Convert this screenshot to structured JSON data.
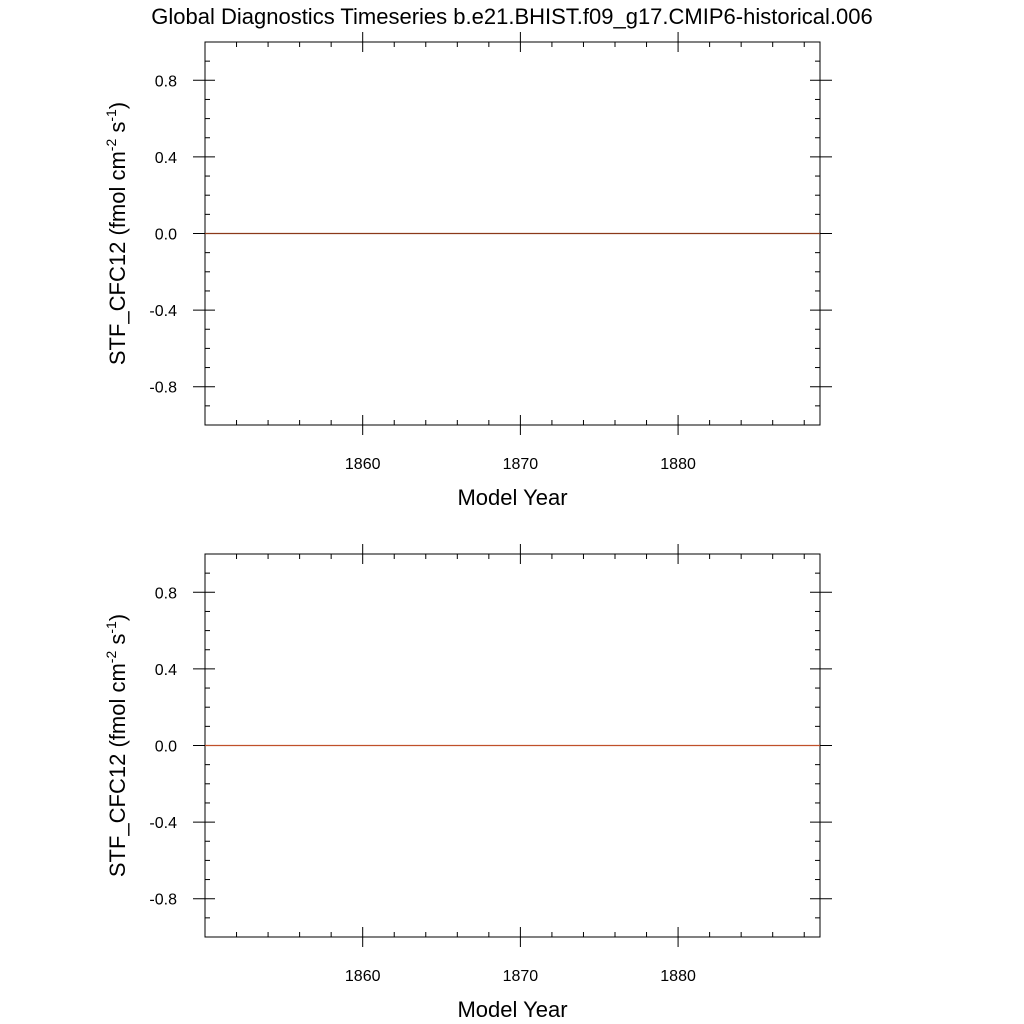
{
  "page": {
    "title": "Global Diagnostics Timeseries b.e21.BHIST.f09_g17.CMIP6-historical.006"
  },
  "chart_data": [
    {
      "type": "line",
      "title": "",
      "xlabel": "Model Year",
      "ylabel_main": "STF_CFC12 (fmol cm",
      "ylabel_sup1": "-2",
      "ylabel_mid": " s",
      "ylabel_sup2": "-1",
      "ylabel_end": ")",
      "xlim": [
        1850,
        1889
      ],
      "ylim": [
        -1.0,
        1.0
      ],
      "x_major_ticks": [
        1860,
        1870,
        1880
      ],
      "x_tick_labels": [
        "1860",
        "1870",
        "1880"
      ],
      "x_minor_step": 2,
      "y_major_ticks": [
        0.8,
        0.4,
        0.0,
        -0.4,
        -0.8
      ],
      "y_tick_labels": [
        "0.8",
        "0.4",
        "0.0",
        "-0.4",
        "-0.8"
      ],
      "y_minor_step": 0.1,
      "grid": false,
      "series": [
        {
          "color": "#8b3a1a",
          "x": [
            1850,
            1889
          ],
          "y": [
            0.0,
            0.0
          ]
        }
      ]
    },
    {
      "type": "line",
      "title": "",
      "xlabel": "Model Year",
      "ylabel_main": "STF_CFC12 (fmol cm",
      "ylabel_sup1": "-2",
      "ylabel_mid": " s",
      "ylabel_sup2": "-1",
      "ylabel_end": ")",
      "xlim": [
        1850,
        1889
      ],
      "ylim": [
        -1.0,
        1.0
      ],
      "x_major_ticks": [
        1860,
        1870,
        1880
      ],
      "x_tick_labels": [
        "1860",
        "1870",
        "1880"
      ],
      "x_minor_step": 2,
      "y_major_ticks": [
        0.8,
        0.4,
        0.0,
        -0.4,
        -0.8
      ],
      "y_tick_labels": [
        "0.8",
        "0.4",
        "0.0",
        "-0.4",
        "-0.8"
      ],
      "y_minor_step": 0.1,
      "grid": false,
      "series": [
        {
          "color": "#c0502a",
          "x": [
            1850,
            1889
          ],
          "y": [
            0.0,
            0.0
          ]
        }
      ]
    }
  ]
}
